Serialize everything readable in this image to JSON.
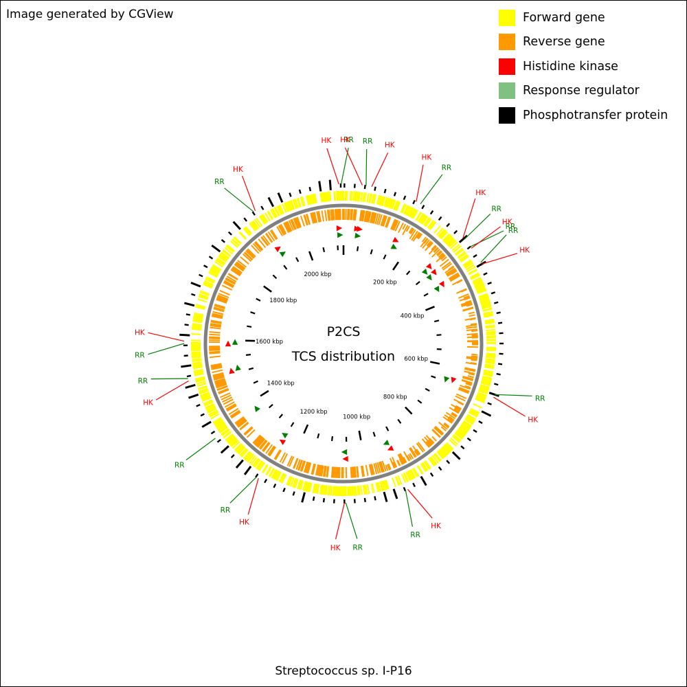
{
  "credit": "Image generated by CGView",
  "legend": [
    {
      "label": "Forward gene",
      "color": "#ffff00"
    },
    {
      "label": "Reverse gene",
      "color": "#ff9900"
    },
    {
      "label": "Histidine kinase",
      "color": "#ff0000"
    },
    {
      "label": "Response regulator",
      "color": "#80c080"
    },
    {
      "label": "Phosphotransfer protein",
      "color": "#000000"
    }
  ],
  "center_title": "P2CS",
  "center_subtitle": "TCS distribution",
  "organism": "Streptococcus sp. I-P16",
  "genome_length_kbp": 2120,
  "backbone_color": "#808080",
  "tick_labels": [
    "200 kbp",
    "400 kbp",
    "600 kbp",
    "800 kbp",
    "1000 kbp",
    "1200 kbp",
    "1400 kbp",
    "1600 kbp",
    "1800 kbp",
    "2000 kbp"
  ],
  "tcs_features": [
    {
      "type": "HK",
      "kbp": 2108
    },
    {
      "type": "RR",
      "kbp": 2110
    },
    {
      "type": "HK",
      "kbp": 40
    },
    {
      "type": "RR",
      "kbp": 45
    },
    {
      "type": "HK",
      "kbp": 48
    },
    {
      "type": "HK",
      "kbp": 160
    },
    {
      "type": "RR",
      "kbp": 165
    },
    {
      "type": "HK",
      "kbp": 286
    },
    {
      "type": "RR",
      "kbp": 290
    },
    {
      "type": "HK",
      "kbp": 308
    },
    {
      "type": "RR",
      "kbp": 312
    },
    {
      "type": "HK",
      "kbp": 350
    },
    {
      "type": "RR",
      "kbp": 355
    },
    {
      "type": "HK",
      "kbp": 640
    },
    {
      "type": "RR",
      "kbp": 645
    },
    {
      "type": "HK",
      "kbp": 920
    },
    {
      "type": "RR",
      "kbp": 925
    },
    {
      "type": "HK",
      "kbp": 1055
    },
    {
      "type": "RR",
      "kbp": 1058
    },
    {
      "type": "HK",
      "kbp": 1250
    },
    {
      "type": "RR",
      "kbp": 1255
    },
    {
      "type": "RR",
      "kbp": 1375
    },
    {
      "type": "HK",
      "kbp": 1510
    },
    {
      "type": "RR",
      "kbp": 1515
    },
    {
      "type": "HK",
      "kbp": 1590
    },
    {
      "type": "RR",
      "kbp": 1595
    },
    {
      "type": "HK",
      "kbp": 1918
    },
    {
      "type": "RR",
      "kbp": 1922
    }
  ],
  "callouts": [
    {
      "label": "HK",
      "kbp": 2110
    },
    {
      "label": "RR",
      "kbp": 2115
    },
    {
      "label": "HK",
      "kbp": 40
    },
    {
      "label": "RR",
      "kbp": 48
    },
    {
      "label": "HK",
      "kbp": 60
    },
    {
      "label": "HK",
      "kbp": 160
    },
    {
      "label": "RR",
      "kbp": 170
    },
    {
      "label": "HK",
      "kbp": 286
    },
    {
      "label": "RR",
      "kbp": 290
    },
    {
      "label": "RR",
      "kbp": 310
    },
    {
      "label": "HK",
      "kbp": 314
    },
    {
      "label": "RR",
      "kbp": 350
    },
    {
      "label": "HK",
      "kbp": 354
    },
    {
      "label": "RR",
      "kbp": 640
    },
    {
      "label": "HK",
      "kbp": 646
    },
    {
      "label": "HK",
      "kbp": 920
    },
    {
      "label": "RR",
      "kbp": 925
    },
    {
      "label": "RR",
      "kbp": 1055
    },
    {
      "label": "HK",
      "kbp": 1058
    },
    {
      "label": "HK",
      "kbp": 1250
    },
    {
      "label": "RR",
      "kbp": 1255
    },
    {
      "label": "RR",
      "kbp": 1375
    },
    {
      "label": "HK",
      "kbp": 1510
    },
    {
      "label": "RR",
      "kbp": 1515
    },
    {
      "label": "RR",
      "kbp": 1590
    },
    {
      "label": "HK",
      "kbp": 1595
    },
    {
      "label": "RR",
      "kbp": 1918
    },
    {
      "label": "HK",
      "kbp": 1922
    }
  ]
}
